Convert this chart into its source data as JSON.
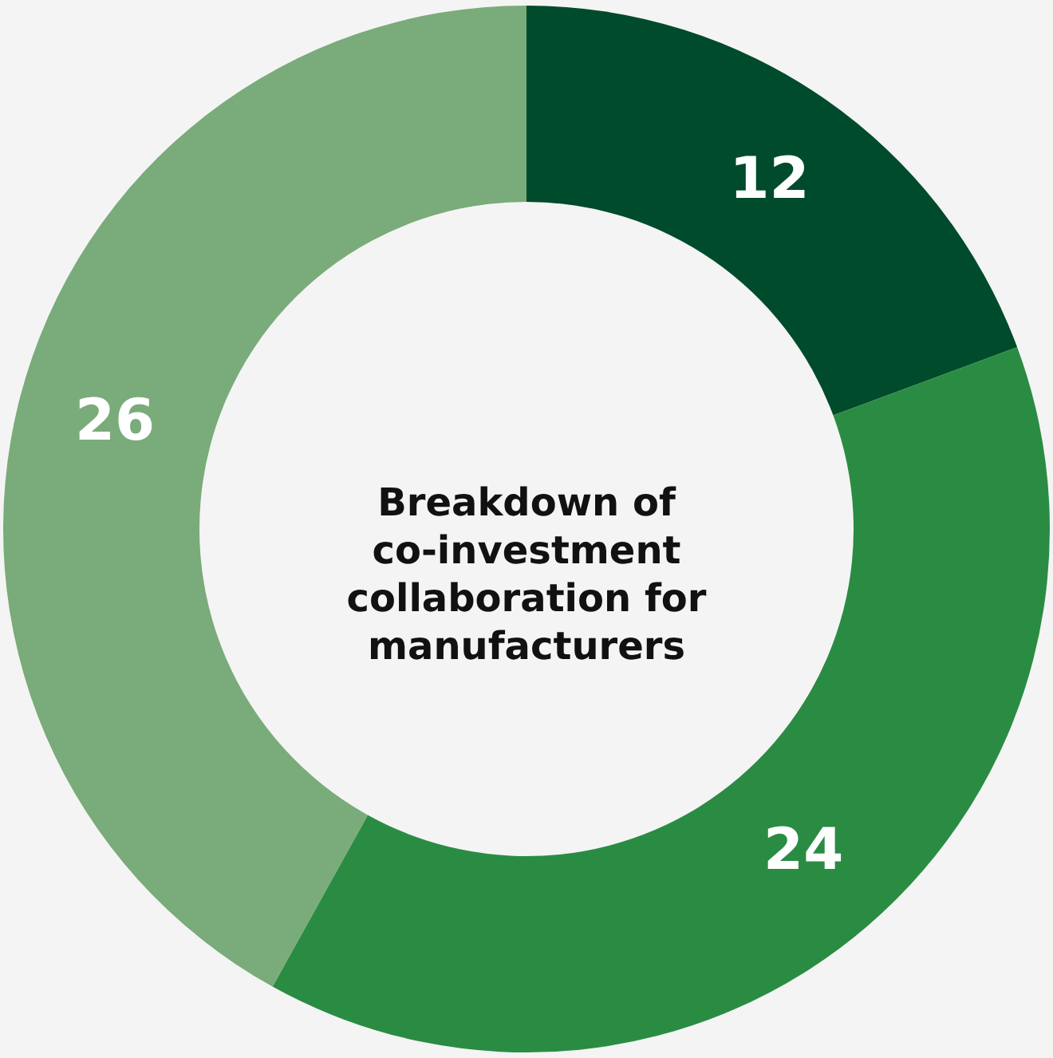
{
  "chart_data": {
    "type": "donut",
    "title": "Breakdown of co-investment collaboration for manufacturers",
    "categories": [
      null,
      null,
      null
    ],
    "values": [
      12,
      24,
      26
    ],
    "colors": [
      "#004b2c",
      "#2a8c43",
      "#7aab7a"
    ],
    "data_labels": true
  }
}
